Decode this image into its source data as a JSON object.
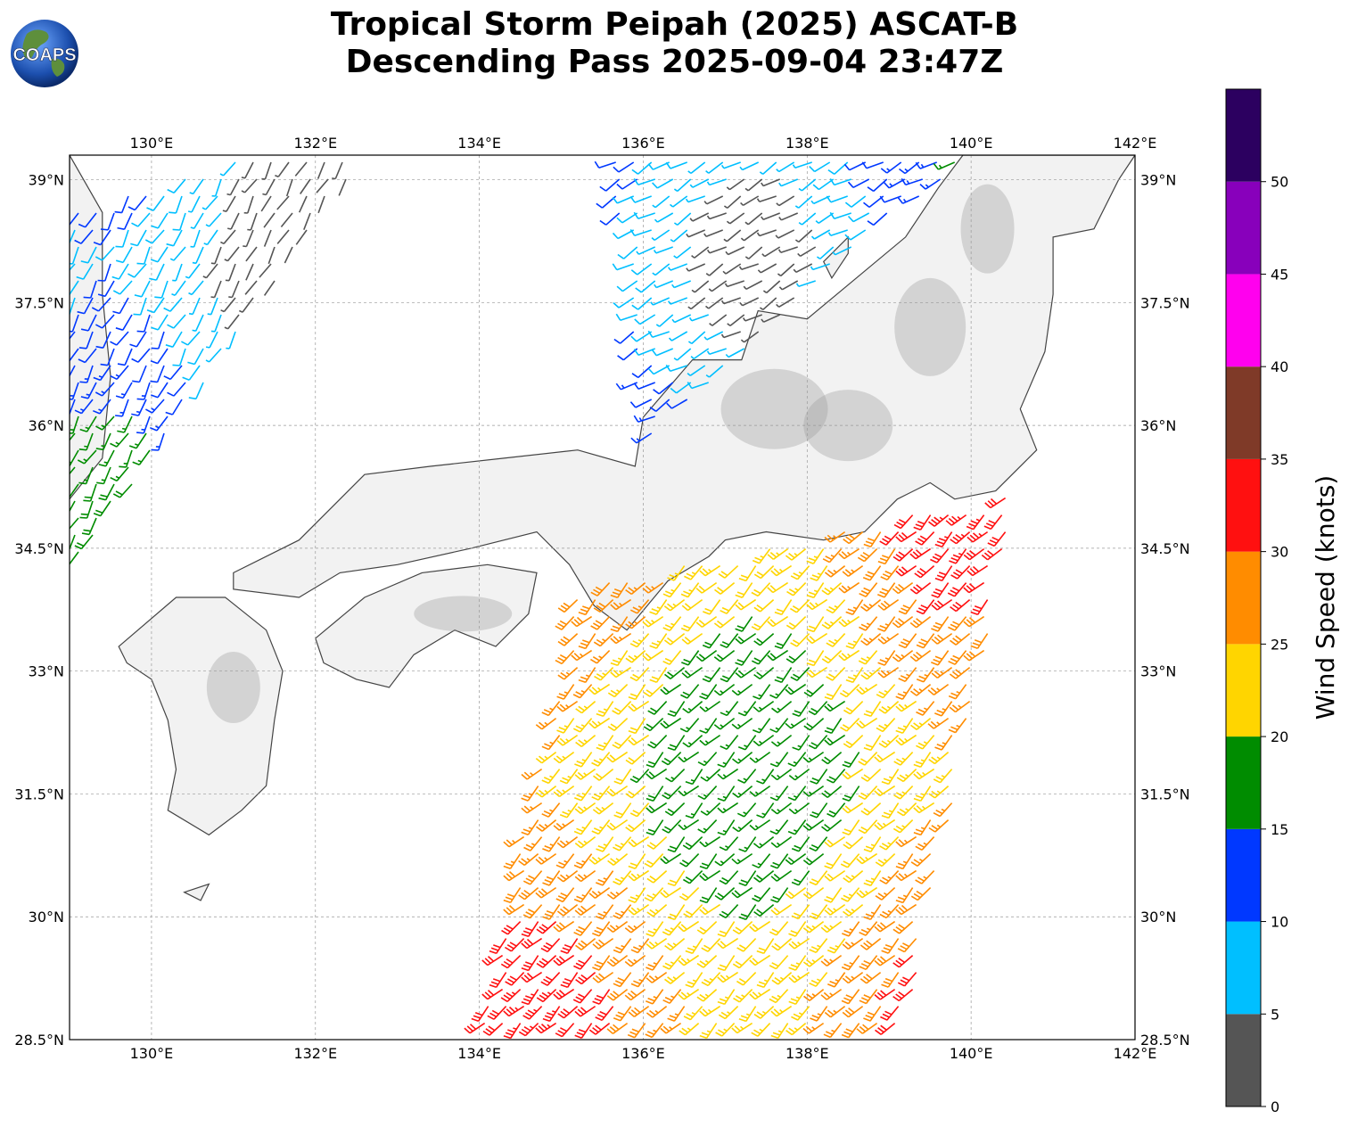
{
  "title": {
    "line1": "Tropical Storm Peipah (2025) ASCAT-B",
    "line2": "Descending Pass 2025-09-04 23:47Z"
  },
  "logo": {
    "text": "COAPS",
    "icon": "globe-logo-icon"
  },
  "map": {
    "projection": "plate-carree",
    "lon_range": [
      129,
      142
    ],
    "lat_range": [
      28.5,
      39.3
    ],
    "lon_ticks": [
      "130°E",
      "132°E",
      "134°E",
      "136°E",
      "138°E",
      "140°E",
      "142°E"
    ],
    "lon_tick_values": [
      130,
      132,
      134,
      136,
      138,
      140,
      142
    ],
    "lat_ticks": [
      "28.5°N",
      "30°N",
      "31.5°N",
      "33°N",
      "34.5°N",
      "36°N",
      "37.5°N",
      "39°N"
    ],
    "lat_tick_values": [
      28.5,
      30,
      31.5,
      33,
      34.5,
      36,
      37.5,
      39
    ],
    "gridlines": true,
    "background": "terrain-grayscale",
    "land_color": "#f2f2f2",
    "coast_color": "#444444"
  },
  "colorbar": {
    "label": "Wind Speed (knots)",
    "tick_labels": [
      "0",
      "5",
      "10",
      "15",
      "20",
      "25",
      "30",
      "35",
      "40",
      "45",
      "50"
    ],
    "bins": [
      {
        "min": 0,
        "max": 5,
        "color": "#555555"
      },
      {
        "min": 5,
        "max": 10,
        "color": "#00bfff"
      },
      {
        "min": 10,
        "max": 15,
        "color": "#0038ff"
      },
      {
        "min": 15,
        "max": 20,
        "color": "#008c00"
      },
      {
        "min": 20,
        "max": 25,
        "color": "#ffd500"
      },
      {
        "min": 25,
        "max": 30,
        "color": "#ff8c00"
      },
      {
        "min": 30,
        "max": 35,
        "color": "#ff1010"
      },
      {
        "min": 35,
        "max": 40,
        "color": "#7f3a28"
      },
      {
        "min": 40,
        "max": 45,
        "color": "#ff00ee"
      },
      {
        "min": 45,
        "max": 50,
        "color": "#8800bb"
      },
      {
        "min": 50,
        "max": 55,
        "color": "#2c0060"
      }
    ],
    "range": [
      0,
      55
    ]
  },
  "wind_swaths": [
    {
      "name": "west-swath",
      "corners": [
        [
          129.0,
          38.6
        ],
        [
          131.2,
          39.3
        ],
        [
          132.6,
          39.3
        ],
        [
          129.0,
          34.2
        ]
      ],
      "dir_deg": 210,
      "speed_kt": 9
    },
    {
      "name": "north-swath",
      "corners": [
        [
          135.6,
          39.3
        ],
        [
          140.0,
          39.3
        ],
        [
          138.0,
          37.6
        ],
        [
          136.0,
          35.8
        ]
      ],
      "dir_deg": 240,
      "speed_kt": 12
    },
    {
      "name": "main-swath",
      "corners": [
        [
          135.2,
          34.0
        ],
        [
          140.6,
          35.2
        ],
        [
          139.2,
          28.5
        ],
        [
          134.0,
          28.5
        ]
      ],
      "dir_deg": 225,
      "speed_kt": 24
    }
  ]
}
